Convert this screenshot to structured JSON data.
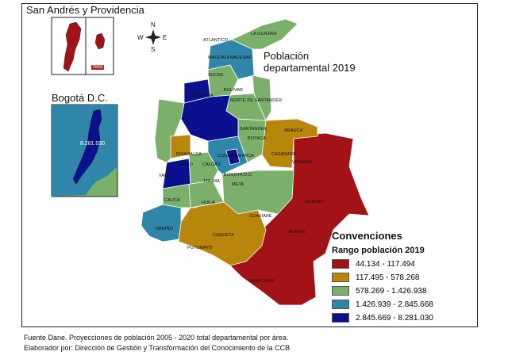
{
  "insets": {
    "san_andres": {
      "title": "San Andrés y Providencia",
      "value": "79060"
    },
    "bogota": {
      "title": "Bogotá D.C.",
      "value": "8.281.030"
    }
  },
  "compass": {
    "n": "N",
    "s": "S",
    "e": "E",
    "w": "W"
  },
  "map_title": {
    "line1": "Población",
    "line2": "departamental 2019"
  },
  "legend": {
    "title": "Convenciones",
    "subtitle": "Rango población 2019",
    "items": [
      {
        "label": "44.134 - 117.494",
        "color": "#a31217"
      },
      {
        "label": "117.495 - 578.268",
        "color": "#b8860b"
      },
      {
        "label": "578.269 - 1.426.938",
        "color": "#7bb06a"
      },
      {
        "label": "1.426.939 - 2.845.668",
        "color": "#2f86a8"
      },
      {
        "label": "2.845.669 - 8.281.030",
        "color": "#0b118e"
      }
    ]
  },
  "departments": {
    "la_guajira": "LA GUAJIRA",
    "atlantico": "ATLANTICO",
    "magdalena_cesar": "MAGDALENACESAR",
    "sucre": "SUCRE",
    "bolivar": "BOLIVAR",
    "cordoba": "CORDOBA",
    "norte_santander": "NORTE DE SANTANDER",
    "santander": "SANTANDER",
    "arauca": "ARAUCA",
    "boyaca": "BOYACA",
    "casanare": "CASANARE",
    "risaralda": "RISARALDA",
    "choco": "CHOCO",
    "caldas": "CALDAS",
    "cundinamarca": "CUNDINAMARCA",
    "bogota": "BOGOTA D.C.",
    "valle": "VALLE",
    "tolima": "TOLIMA",
    "meta": "META",
    "vichada": "VICHADA",
    "guainia": "GUAINIA",
    "cauca": "CAUCA",
    "huila": "HUILA",
    "narino": "NARIÑO",
    "caqueta": "CAQUETA",
    "putumayo": "PUTUMAYO",
    "guaviare": "GUAVIARE",
    "vaupes": "VAUPES",
    "amazonas": "AMAZONAS"
  },
  "footer": {
    "line1": "Fuente Dane. Proyecciones de población 2005 - 2020 total departamental por área.",
    "line2": "Elaborador por: Dirección de Gestión y Transformación del Conocimiento de la CCB"
  }
}
